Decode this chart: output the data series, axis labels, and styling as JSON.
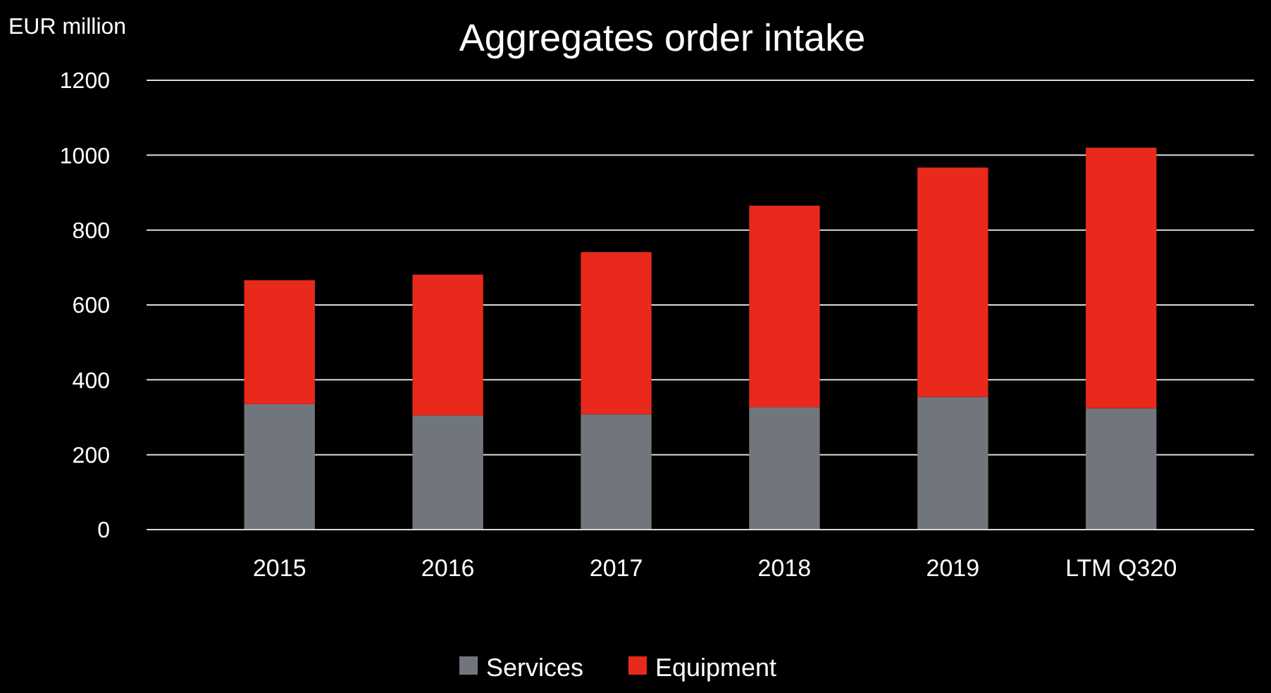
{
  "chart_data": {
    "type": "bar",
    "title": "Aggregates order intake",
    "ylabel": "EUR million",
    "categories": [
      "2015",
      "2016",
      "2017",
      "2018",
      "2019",
      "LTM Q320"
    ],
    "stacked": true,
    "series": [
      {
        "name": "Services",
        "color": "#71767d",
        "values": [
          335,
          305,
          308,
          327,
          354,
          324
        ]
      },
      {
        "name": "Equipment",
        "color": "#e8291c",
        "values": [
          331,
          376,
          433,
          538,
          613,
          696
        ]
      }
    ],
    "ylim": [
      0,
      1200
    ],
    "yticks": [
      0,
      200,
      400,
      600,
      800,
      1000,
      1200
    ],
    "grid": "y",
    "legend": "bottom"
  }
}
